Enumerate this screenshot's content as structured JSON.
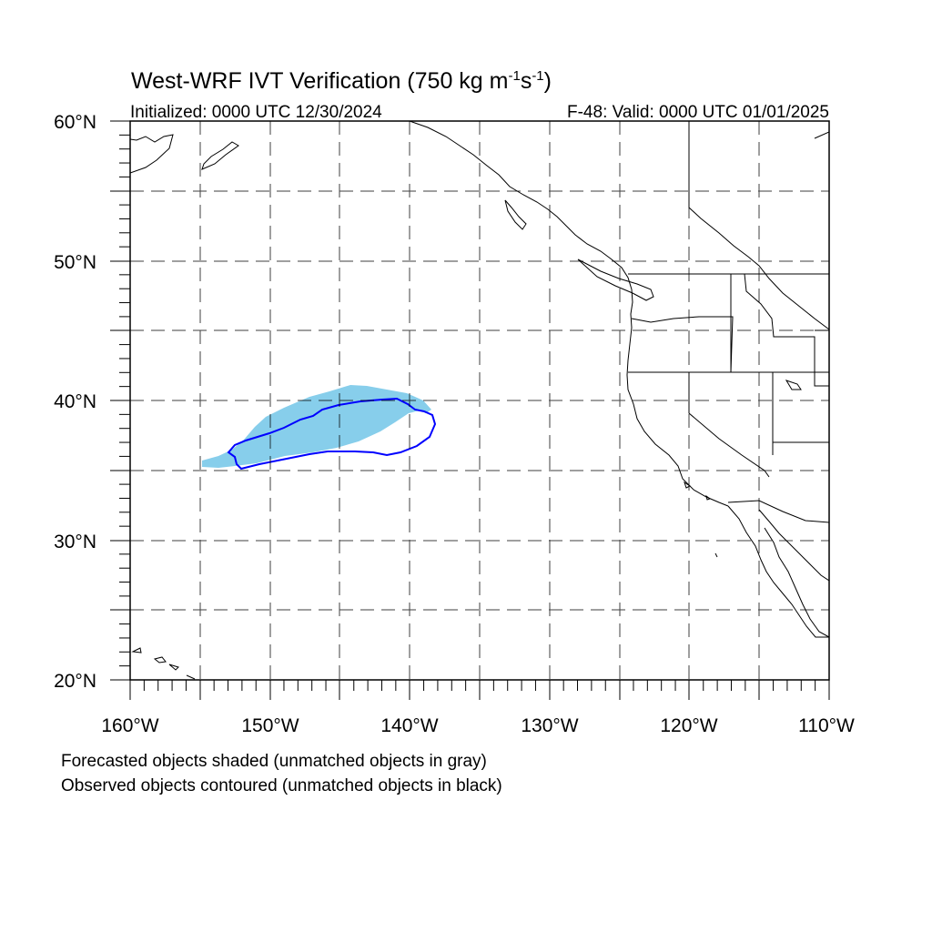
{
  "title": {
    "main": "West-WRF IVT Verification (750 kg m",
    "sup1": "-1",
    "mid": "s",
    "sup2": "-1",
    "close": ")"
  },
  "subtitle_left": "Initialized: 0000 UTC 12/30/2024",
  "subtitle_right": "F-48: Valid: 0000 UTC 01/01/2025",
  "lat_labels": [
    "60°N",
    "50°N",
    "40°N",
    "30°N",
    "20°N"
  ],
  "lon_labels": [
    "160°W",
    "150°W",
    "140°W",
    "130°W",
    "120°W",
    "110°W"
  ],
  "footnote_1": "Forecasted objects shaded (unmatched objects in gray)",
  "footnote_2": "Observed objects contoured (unmatched objects in black)",
  "colors": {
    "forecast_fill": "#87ceeb",
    "observed_contour": "#0000ff",
    "grid": "#000000",
    "coast": "#000000"
  }
}
